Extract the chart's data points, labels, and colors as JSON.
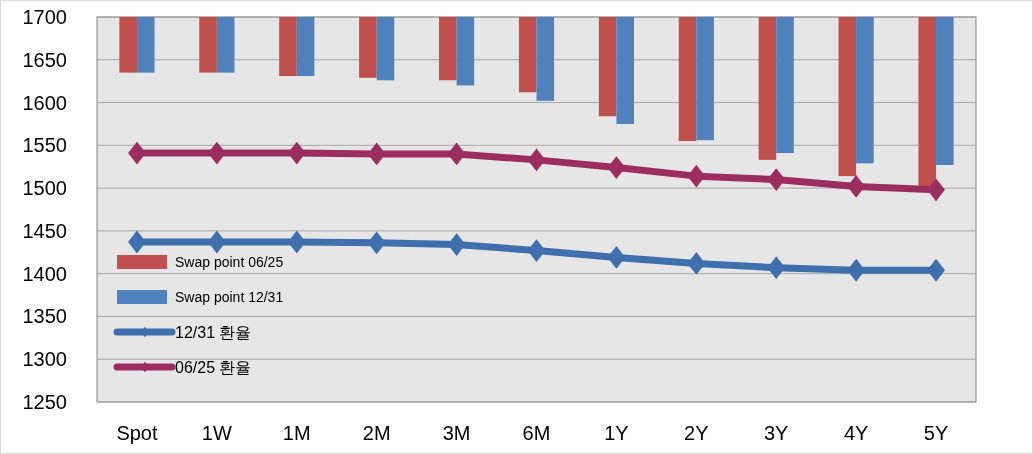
{
  "chart_data": {
    "type": "bar",
    "categories": [
      "Spot",
      "1W",
      "1M",
      "2M",
      "3M",
      "6M",
      "1Y",
      "2Y",
      "3Y",
      "4Y",
      "5Y"
    ],
    "series": [
      {
        "name": "Swap point 06/25",
        "color": "#c0504d",
        "base": [
          1700,
          1700,
          1700,
          1700,
          1700,
          1700,
          1700,
          1700,
          1700,
          1700,
          1700
        ],
        "values": [
          -65,
          -65,
          -69,
          -71,
          -74,
          -88,
          -116,
          -145,
          -167,
          -186,
          -200
        ]
      },
      {
        "name": "Swap point 12/31",
        "color": "#4f81bd",
        "base": [
          1700,
          1700,
          1700,
          1700,
          1700,
          1700,
          1700,
          1700,
          1700,
          1700,
          1700
        ],
        "values": [
          -65,
          -65,
          -69,
          -74,
          -80,
          -98,
          -125,
          -144,
          -159,
          -171,
          -173
        ]
      },
      {
        "name": "12/31 환율",
        "type": "line",
        "color": "#3f6fad",
        "values": [
          1437,
          1437,
          1437,
          1436,
          1434,
          1427,
          1419,
          1412,
          1407,
          1404,
          1404
        ]
      },
      {
        "name": "06/25 환율",
        "type": "line",
        "color": "#9b2d5f",
        "values": [
          1541,
          1541,
          1541,
          1540,
          1540,
          1533,
          1524,
          1514,
          1510,
          1502,
          1498
        ]
      }
    ],
    "ylim": [
      1250,
      1700
    ],
    "yticks": [
      1250,
      1300,
      1350,
      1400,
      1450,
      1500,
      1550,
      1600,
      1650,
      1700
    ],
    "grid": "y",
    "legend": "bottom left",
    "marker": "diamond",
    "line_style": "solid"
  }
}
